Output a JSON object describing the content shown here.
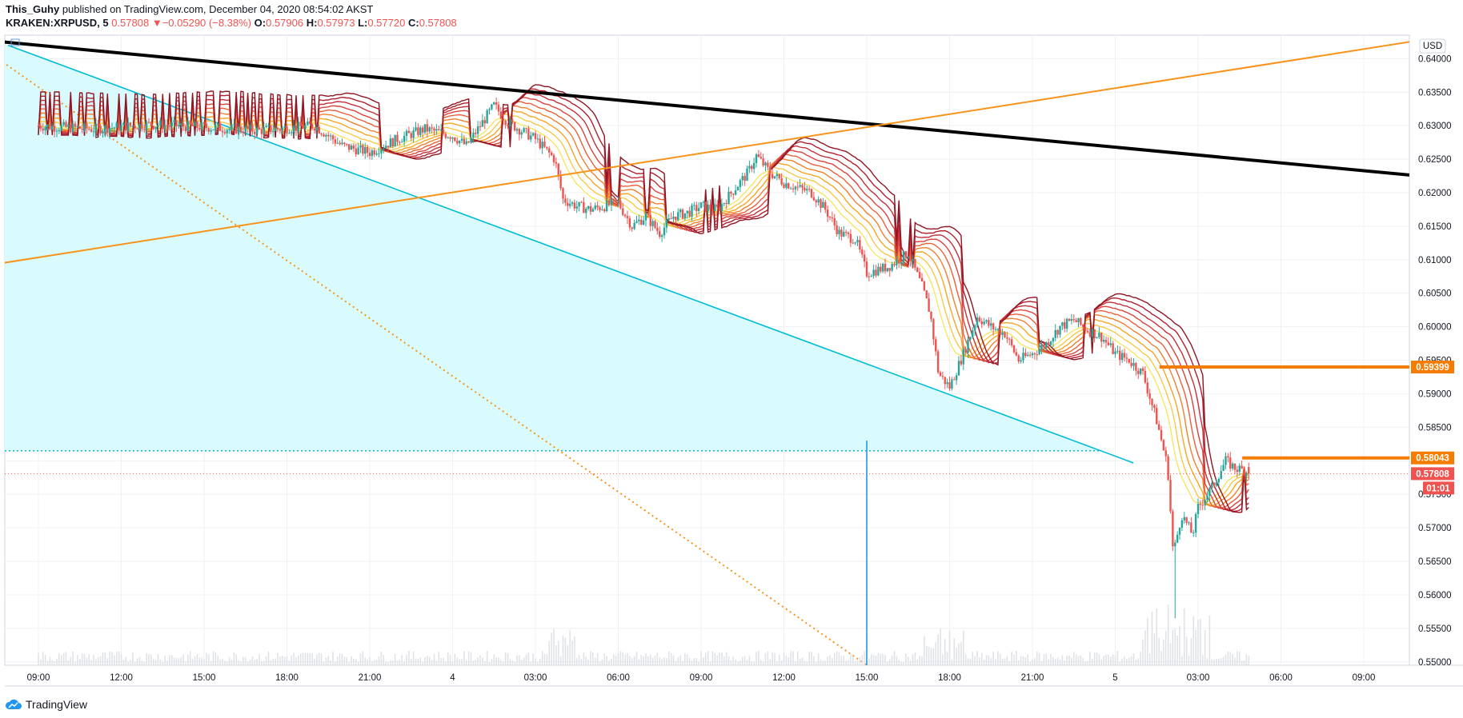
{
  "header": {
    "author": "This_Guhy",
    "published_text": "published on TradingView.com, December 04, 2020 08:54:02 AKST",
    "symbol": "KRAKEN:XRPUSD, 5",
    "last": "0.57808",
    "change_arrow": "▼",
    "change": "−0.05290 (−8.38%)",
    "o_label": "O:",
    "o": "0.57906",
    "h_label": "H:",
    "h": "0.57973",
    "l_label": "L:",
    "l": "0.57720",
    "c_label": "C:",
    "c": "0.57808"
  },
  "footer": {
    "brand": "TradingView",
    "icon": "tradingview-cloud-icon"
  },
  "colors": {
    "up": "#26a69a",
    "down": "#ef5350",
    "trend_black": "#000000",
    "trend_orange": "#f7931a",
    "trend_cyan": "#00bcd4",
    "fill_cyan": "#d9fbfe",
    "level_orange": "#f57c00",
    "vline_blue": "#2196f3",
    "ribbon": [
      "#f5e663",
      "#f7c948",
      "#f5a623",
      "#ef8030",
      "#e8603a",
      "#d9443c",
      "#c4303a",
      "#b01f2e",
      "#8f1522"
    ]
  },
  "chart_data": {
    "type": "candlestick",
    "title": "KRAKEN:XRPUSD, 5",
    "currency_label": "USD",
    "x_ticks": [
      "09:00",
      "12:00",
      "15:00",
      "18:00",
      "21:00",
      "4",
      "03:00",
      "06:00",
      "09:00",
      "12:00",
      "15:00",
      "18:00",
      "21:00",
      "5",
      "03:00",
      "06:00",
      "09:00"
    ],
    "y_ticks": [
      "0.64000",
      "0.63500",
      "0.63000",
      "0.62500",
      "0.62000",
      "0.61500",
      "0.61000",
      "0.60500",
      "0.60000",
      "0.59500",
      "0.59000",
      "0.58500",
      "0.58000",
      "0.57500",
      "0.57000",
      "0.56500",
      "0.56000",
      "0.55500",
      "0.55000"
    ],
    "ylim": [
      0.5495,
      0.6435
    ],
    "price_path": [
      [
        0,
        0.63
      ],
      [
        2,
        0.6295
      ],
      [
        4,
        0.6302
      ],
      [
        6,
        0.6298
      ],
      [
        8,
        0.6293
      ],
      [
        10,
        0.63
      ],
      [
        11,
        0.627
      ],
      [
        12,
        0.626
      ],
      [
        13,
        0.628
      ],
      [
        14,
        0.6295
      ],
      [
        15,
        0.6285
      ],
      [
        15.5,
        0.627
      ],
      [
        16,
        0.63
      ],
      [
        16.5,
        0.633
      ],
      [
        17,
        0.6305
      ],
      [
        18,
        0.628
      ],
      [
        18.7,
        0.625
      ],
      [
        19,
        0.619
      ],
      [
        19.5,
        0.618
      ],
      [
        20,
        0.6175
      ],
      [
        21,
        0.6185
      ],
      [
        21.5,
        0.615
      ],
      [
        22,
        0.6165
      ],
      [
        22.5,
        0.614
      ],
      [
        23,
        0.6165
      ],
      [
        23.5,
        0.617
      ],
      [
        24,
        0.618
      ],
      [
        24.6,
        0.6175
      ],
      [
        25,
        0.6195
      ],
      [
        25.7,
        0.623
      ],
      [
        26,
        0.6255
      ],
      [
        26.5,
        0.623
      ],
      [
        27,
        0.6215
      ],
      [
        28,
        0.62
      ],
      [
        28.5,
        0.6175
      ],
      [
        29,
        0.614
      ],
      [
        29.6,
        0.613
      ],
      [
        30,
        0.608
      ],
      [
        30.8,
        0.609
      ],
      [
        31.5,
        0.611
      ],
      [
        32,
        0.606
      ],
      [
        32.3,
        0.602
      ],
      [
        32.6,
        0.593
      ],
      [
        33,
        0.591
      ],
      [
        33.5,
        0.596
      ],
      [
        34,
        0.6015
      ],
      [
        34.5,
        0.6
      ],
      [
        35,
        0.599
      ],
      [
        35.5,
        0.595
      ],
      [
        36,
        0.596
      ],
      [
        36.5,
        0.5975
      ],
      [
        37,
        0.6
      ],
      [
        37.5,
        0.601
      ],
      [
        38,
        0.5995
      ],
      [
        38.5,
        0.5985
      ],
      [
        39,
        0.596
      ],
      [
        39.5,
        0.595
      ],
      [
        40,
        0.593
      ],
      [
        40.5,
        0.586
      ],
      [
        40.9,
        0.579
      ],
      [
        41.1,
        0.566
      ],
      [
        41.4,
        0.572
      ],
      [
        41.8,
        0.569
      ],
      [
        42,
        0.573
      ],
      [
        42.5,
        0.576
      ],
      [
        43,
        0.58
      ],
      [
        43.3,
        0.579
      ],
      [
        43.7,
        0.5785
      ],
      [
        43.9,
        0.5781
      ]
    ],
    "ribbon_offsets": [
      0.0,
      0.0007,
      0.0014,
      0.0021,
      0.0028,
      0.0035,
      0.0042,
      0.0049,
      0.0056
    ],
    "price_lines": [
      {
        "name": "level-1",
        "value": 0.59399,
        "label": "0.59399"
      },
      {
        "name": "level-2",
        "value": 0.58043,
        "label": "0.58043"
      },
      {
        "name": "last-price",
        "value": 0.57808,
        "label": "0.57808"
      }
    ],
    "countdown": "01:01",
    "trendlines": {
      "black": {
        "from": [
          -1.3,
          0.6425
        ],
        "to": [
          58.2,
          0.6193
        ]
      },
      "orange": {
        "from": [
          -1.3,
          0.6095
        ],
        "to": [
          51.2,
          0.6435
        ]
      },
      "cyan": {
        "from": [
          -1.1,
          0.642
        ],
        "to": [
          40.5,
          0.5784
        ]
      },
      "orange_dotted": {
        "from": [
          -1.3,
          0.6395
        ],
        "to": [
          30.0,
          0.5495
        ]
      }
    },
    "dotted_level": 0.5815,
    "vertical_marker_x": 30.0
  }
}
